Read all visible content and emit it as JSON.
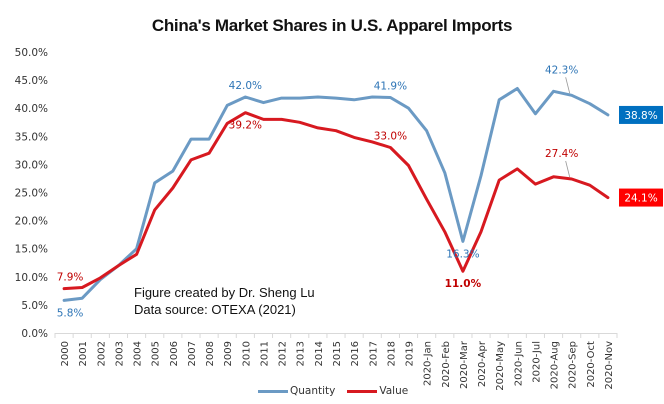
{
  "chart_data": {
    "type": "line",
    "title": "China's Market Shares in U.S. Apparel Imports",
    "xlabel": "",
    "ylabel": "",
    "ylim": [
      0,
      50
    ],
    "yticks": [
      "0.0%",
      "5.0%",
      "10.0%",
      "15.0%",
      "20.0%",
      "25.0%",
      "30.0%",
      "35.0%",
      "40.0%",
      "45.0%",
      "50.0%"
    ],
    "ytick_values": [
      0,
      5,
      10,
      15,
      20,
      25,
      30,
      35,
      40,
      45,
      50
    ],
    "grid": false,
    "legend_position": "bottom",
    "categories": [
      "2000",
      "2001",
      "2002",
      "2003",
      "2004",
      "2005",
      "2006",
      "2007",
      "2008",
      "2009",
      "2010",
      "2011",
      "2012",
      "2013",
      "2014",
      "2015",
      "2016",
      "2017",
      "2018",
      "2019",
      "2020-Jan",
      "2020-Feb",
      "2020-Mar",
      "2020-Apr",
      "2020-May",
      "2020-Jun",
      "2020-Jul",
      "2020-Aug",
      "2020-Sep",
      "2020-Oct",
      "2020-Nov"
    ],
    "series": [
      {
        "name": "Quantity",
        "color": "#6b9ac4",
        "values": [
          5.8,
          6.2,
          9.5,
          12.0,
          15.0,
          26.7,
          28.8,
          34.5,
          34.5,
          40.5,
          42.0,
          41.0,
          41.8,
          41.8,
          42.0,
          41.8,
          41.5,
          42.0,
          41.9,
          40.0,
          36.0,
          28.5,
          16.3,
          28.0,
          41.5,
          43.5,
          39.0,
          43.0,
          42.3,
          40.8,
          38.8
        ]
      },
      {
        "name": "Value",
        "color": "#d71920",
        "values": [
          7.9,
          8.1,
          9.8,
          12.0,
          14.0,
          21.9,
          25.8,
          30.8,
          32.0,
          37.3,
          39.2,
          38.0,
          38.0,
          37.5,
          36.5,
          36.0,
          34.8,
          34.0,
          33.0,
          29.8,
          23.8,
          18.0,
          11.0,
          18.0,
          27.2,
          29.2,
          26.5,
          27.8,
          27.4,
          26.3,
          24.1
        ]
      }
    ],
    "data_labels": [
      {
        "series": "Quantity",
        "category": "2000",
        "text": "5.8%",
        "color": "#2e75b6",
        "boxed": false,
        "place": "below"
      },
      {
        "series": "Quantity",
        "category": "2010",
        "text": "42.0%",
        "color": "#2e75b6",
        "boxed": false,
        "place": "above"
      },
      {
        "series": "Quantity",
        "category": "2018",
        "text": "41.9%",
        "color": "#2e75b6",
        "boxed": false,
        "place": "above"
      },
      {
        "series": "Quantity",
        "category": "2020-Mar",
        "text": "16.3%",
        "color": "#2e75b6",
        "boxed": false,
        "place": "below"
      },
      {
        "series": "Quantity",
        "category": "2020-Sep",
        "text": "42.3%",
        "color": "#2e75b6",
        "boxed": false,
        "place": "above-leader"
      },
      {
        "series": "Quantity",
        "category": "2020-Nov",
        "text": "38.8%",
        "color": "#ffffff",
        "bg": "#0070c0",
        "boxed": true,
        "place": "right"
      },
      {
        "series": "Value",
        "category": "2000",
        "text": "7.9%",
        "color": "#c00000",
        "boxed": false,
        "place": "above"
      },
      {
        "series": "Value",
        "category": "2010",
        "text": "39.2%",
        "color": "#c00000",
        "boxed": false,
        "place": "below"
      },
      {
        "series": "Value",
        "category": "2018",
        "text": "33.0%",
        "color": "#c00000",
        "boxed": false,
        "place": "above"
      },
      {
        "series": "Value",
        "category": "2020-Mar",
        "text": "11.0%",
        "color": "#c00000",
        "boxed": false,
        "place": "below",
        "bold": true
      },
      {
        "series": "Value",
        "category": "2020-Sep",
        "text": "27.4%",
        "color": "#c00000",
        "boxed": false,
        "place": "above-leader"
      },
      {
        "series": "Value",
        "category": "2020-Nov",
        "text": "24.1%",
        "color": "#ffffff",
        "bg": "#ff0000",
        "boxed": true,
        "place": "right"
      }
    ],
    "annotations": [
      "Figure created by Dr. Sheng Lu",
      "Data source: OTEXA (2021)"
    ]
  }
}
